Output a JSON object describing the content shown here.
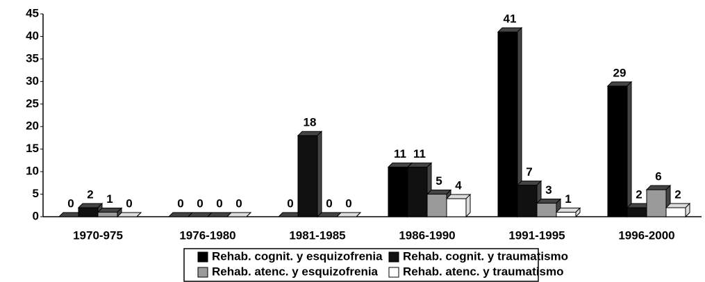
{
  "chart_data": {
    "type": "bar",
    "categories": [
      "1970-975",
      "1976-1980",
      "1981-1985",
      "1986-1990",
      "1991-1995",
      "1996-2000"
    ],
    "series": [
      {
        "name": "Rehab. cognit. y esquizofrenia",
        "color": "#000000",
        "values": [
          0,
          0,
          0,
          11,
          41,
          29
        ]
      },
      {
        "name": "Rehab. cognit. y traumatismo",
        "color": "#111111",
        "values": [
          2,
          0,
          18,
          11,
          7,
          2
        ]
      },
      {
        "name": "Rehab. atenc. y esquizofrenia",
        "color": "#9a9a9a",
        "values": [
          1,
          0,
          0,
          5,
          3,
          6
        ]
      },
      {
        "name": "Rehab. atenc. y traumatismo",
        "color": "#ffffff",
        "values": [
          0,
          0,
          0,
          4,
          1,
          2
        ]
      }
    ],
    "ylim": [
      0,
      45
    ],
    "yticks": [
      0,
      5,
      10,
      15,
      20,
      25,
      30,
      35,
      40,
      45
    ],
    "legend": "bottom"
  }
}
